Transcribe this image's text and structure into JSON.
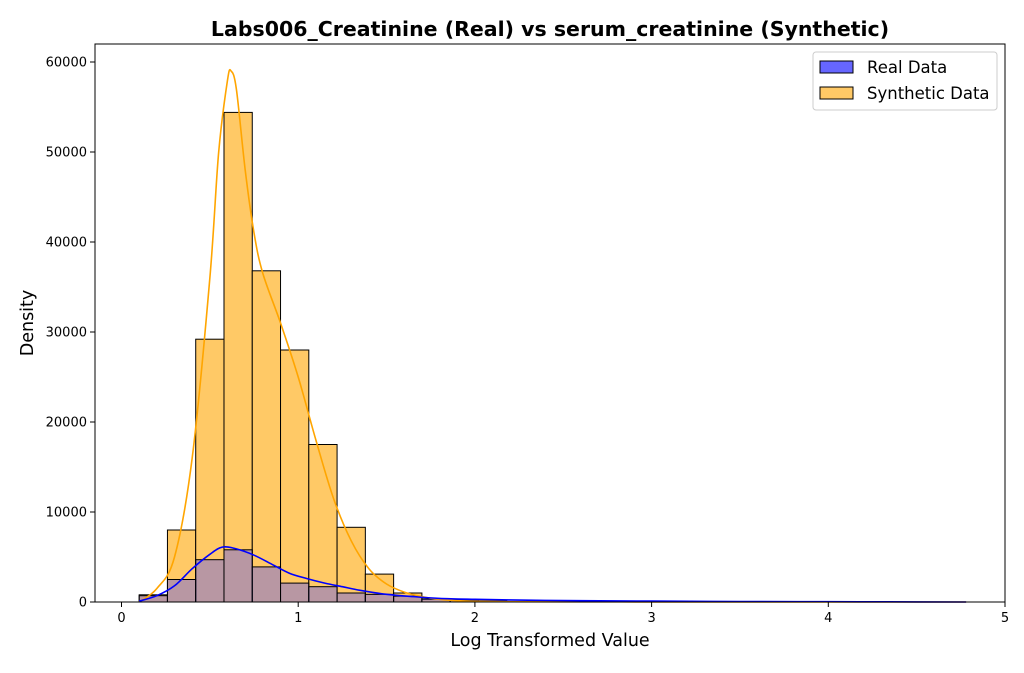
{
  "chart_data": {
    "type": "histogram",
    "title": "Labs006_Creatinine (Real) vs serum_creatinine (Synthetic)",
    "xlabel": "Log Transformed Value",
    "ylabel": "Density",
    "xlim": [
      -0.15,
      5.0
    ],
    "ylim": [
      0,
      62000
    ],
    "xticks": [
      0,
      1,
      2,
      3,
      4,
      5
    ],
    "yticks": [
      0,
      10000,
      20000,
      30000,
      40000,
      50000,
      60000
    ],
    "legend": {
      "position": "top-right"
    },
    "bin_edges": [
      0.1,
      0.26,
      0.42,
      0.58,
      0.74,
      0.9,
      1.06,
      1.22,
      1.38,
      1.54,
      1.7,
      1.86,
      2.02,
      2.18
    ],
    "series": [
      {
        "name": "Real Data",
        "color": "#0000ff",
        "fill_color": "#6666ff",
        "values": [
          700,
          2500,
          4700,
          5800,
          3900,
          2100,
          1700,
          1000,
          850,
          650,
          350,
          250,
          150
        ],
        "kde": {
          "x": [
            0.1,
            0.2,
            0.3,
            0.4,
            0.5,
            0.57,
            0.65,
            0.75,
            0.85,
            0.95,
            1.05,
            1.15,
            1.25,
            1.35,
            1.5,
            1.65,
            1.8,
            2.0,
            2.3,
            2.6,
            3.0,
            3.5,
            4.0,
            4.5,
            4.78
          ],
          "y": [
            100,
            700,
            1800,
            3700,
            5300,
            6100,
            5900,
            5200,
            4200,
            3200,
            2600,
            2100,
            1700,
            1300,
            850,
            600,
            400,
            300,
            200,
            150,
            100,
            50,
            30,
            10,
            0
          ]
        }
      },
      {
        "name": "Synthetic Data",
        "color": "#ffa500",
        "fill_color": "#ffc966",
        "values": [
          800,
          8000,
          29200,
          54400,
          36800,
          28000,
          17500,
          8300,
          3100,
          1000,
          300,
          200,
          100
        ],
        "kde": {
          "x": [
            0.1,
            0.2,
            0.3,
            0.4,
            0.5,
            0.55,
            0.6,
            0.62,
            0.65,
            0.7,
            0.75,
            0.8,
            0.9,
            1.0,
            1.1,
            1.2,
            1.3,
            1.4,
            1.5,
            1.6,
            1.7,
            1.8,
            1.9,
            2.0,
            2.2,
            2.5,
            3.0,
            3.5,
            4.0,
            4.5,
            4.78
          ],
          "y": [
            0,
            1500,
            5000,
            16000,
            36000,
            50000,
            58000,
            59000,
            57000,
            48000,
            41000,
            36500,
            31000,
            25000,
            18000,
            11500,
            6800,
            3700,
            2000,
            1100,
            600,
            300,
            150,
            80,
            40,
            20,
            10,
            5,
            2,
            1,
            0
          ]
        }
      }
    ]
  }
}
